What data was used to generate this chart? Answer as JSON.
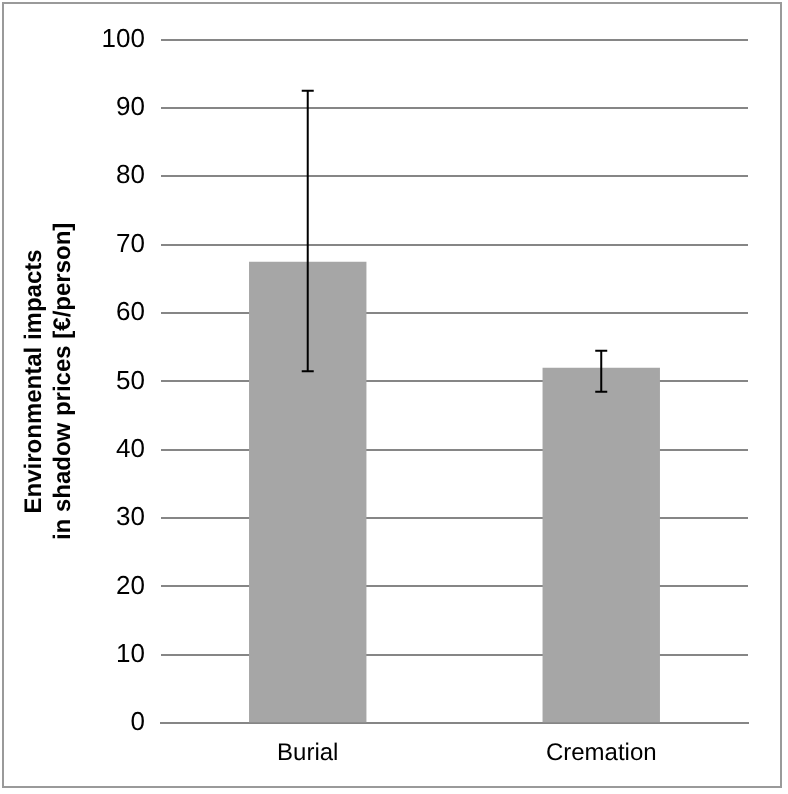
{
  "chart_data": {
    "type": "bar",
    "ylabel": "Environmental impacts\nin shadow prices [€/person]",
    "categories": [
      "Burial",
      "Cremation"
    ],
    "values": [
      67.5,
      52
    ],
    "color": "#a6a6a6",
    "errors": [
      [
        51.5,
        92.5
      ],
      [
        48.5,
        54.5
      ]
    ],
    "ylim": [
      0,
      100
    ],
    "yticks": [
      0,
      10,
      20,
      30,
      40,
      50,
      60,
      70,
      80,
      90,
      100
    ],
    "grid": "y",
    "legend": false
  }
}
